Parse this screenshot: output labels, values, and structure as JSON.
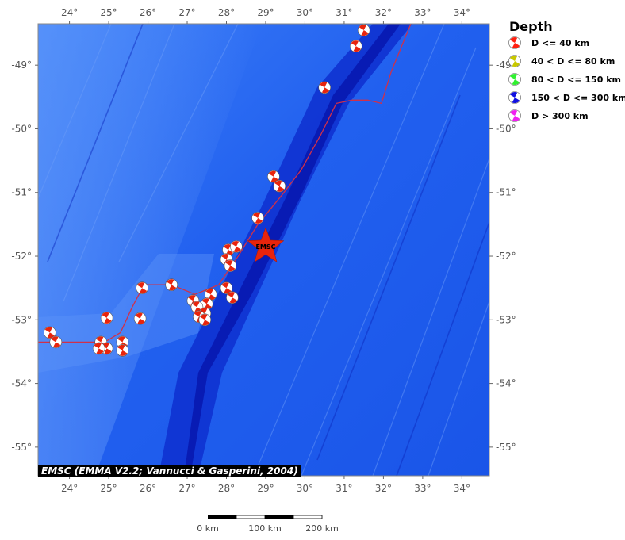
{
  "map": {
    "lon_range": [
      23.2,
      34.7
    ],
    "lat_range": [
      -55.45,
      -48.35
    ],
    "lon_ticks": [
      {
        "v": 24,
        "label": "24°"
      },
      {
        "v": 25,
        "label": "25°"
      },
      {
        "v": 26,
        "label": "26°"
      },
      {
        "v": 27,
        "label": "27°"
      },
      {
        "v": 28,
        "label": "28°"
      },
      {
        "v": 29,
        "label": "29°"
      },
      {
        "v": 30,
        "label": "30°"
      },
      {
        "v": 31,
        "label": "31°"
      },
      {
        "v": 32,
        "label": "32°"
      },
      {
        "v": 33,
        "label": "33°"
      },
      {
        "v": 34,
        "label": "34°"
      }
    ],
    "lat_ticks": [
      {
        "v": -49,
        "label": "-49°"
      },
      {
        "v": -50,
        "label": "-50°"
      },
      {
        "v": -51,
        "label": "-51°"
      },
      {
        "v": -52,
        "label": "-52°"
      },
      {
        "v": -53,
        "label": "-53°"
      },
      {
        "v": -54,
        "label": "-54°"
      },
      {
        "v": -55,
        "label": "-55°"
      }
    ],
    "colors": {
      "ocean_deep": "#0a2fd8",
      "ocean_mid": "#1e5cf0",
      "ocean_light": "#4f8dfa",
      "trench": "#0818b0",
      "plate_boundary": "#d0304a",
      "mechanism_red": "#e8240c"
    },
    "plate_boundary": [
      [
        23.2,
        -53.35
      ],
      [
        24.0,
        -53.35
      ],
      [
        24.9,
        -53.35
      ],
      [
        25.3,
        -53.2
      ],
      [
        25.6,
        -52.8
      ],
      [
        25.9,
        -52.45
      ],
      [
        26.6,
        -52.45
      ],
      [
        27.2,
        -52.6
      ],
      [
        27.8,
        -52.45
      ],
      [
        28.3,
        -52.0
      ],
      [
        28.8,
        -51.5
      ],
      [
        29.4,
        -51.05
      ],
      [
        29.9,
        -50.65
      ],
      [
        30.4,
        -50.1
      ],
      [
        30.8,
        -49.6
      ],
      [
        31.2,
        -49.55
      ],
      [
        31.6,
        -49.55
      ],
      [
        31.95,
        -49.6
      ],
      [
        32.2,
        -49.1
      ],
      [
        32.7,
        -48.35
      ]
    ],
    "events": [
      {
        "lon": 31.5,
        "lat": -48.45
      },
      {
        "lon": 31.3,
        "lat": -48.7
      },
      {
        "lon": 30.5,
        "lat": -49.35
      },
      {
        "lon": 29.2,
        "lat": -50.75
      },
      {
        "lon": 29.35,
        "lat": -50.9
      },
      {
        "lon": 28.8,
        "lat": -51.4
      },
      {
        "lon": 28.05,
        "lat": -51.9
      },
      {
        "lon": 28.25,
        "lat": -51.85
      },
      {
        "lon": 28.0,
        "lat": -52.05
      },
      {
        "lon": 28.1,
        "lat": -52.15
      },
      {
        "lon": 25.85,
        "lat": -52.5
      },
      {
        "lon": 26.6,
        "lat": -52.45
      },
      {
        "lon": 27.6,
        "lat": -52.6
      },
      {
        "lon": 28.0,
        "lat": -52.5
      },
      {
        "lon": 28.15,
        "lat": -52.65
      },
      {
        "lon": 27.15,
        "lat": -52.7
      },
      {
        "lon": 27.5,
        "lat": -52.75
      },
      {
        "lon": 27.25,
        "lat": -52.8
      },
      {
        "lon": 27.45,
        "lat": -52.9
      },
      {
        "lon": 27.3,
        "lat": -52.95
      },
      {
        "lon": 27.45,
        "lat": -53.0
      },
      {
        "lon": 24.95,
        "lat": -52.97
      },
      {
        "lon": 25.8,
        "lat": -52.98
      },
      {
        "lon": 23.5,
        "lat": -53.2
      },
      {
        "lon": 23.65,
        "lat": -53.35
      },
      {
        "lon": 24.8,
        "lat": -53.35
      },
      {
        "lon": 24.95,
        "lat": -53.45
      },
      {
        "lon": 24.75,
        "lat": -53.45
      },
      {
        "lon": 25.35,
        "lat": -53.35
      },
      {
        "lon": 25.35,
        "lat": -53.48
      }
    ],
    "epicenter": {
      "lon": 29.0,
      "lat": -51.85,
      "label": "EMSC",
      "color": "#e8240c"
    }
  },
  "legend": {
    "title": "Depth",
    "items": [
      {
        "label": "D <= 40 km",
        "color": "#ff2010"
      },
      {
        "label": "40 < D <= 80 km",
        "color": "#c8c800"
      },
      {
        "label": "80 < D <= 150 km",
        "color": "#30f030"
      },
      {
        "label": "150 < D <= 300 km",
        "color": "#1010e0"
      },
      {
        "label": "D > 300 km",
        "color": "#f020f0"
      }
    ]
  },
  "credit": "EMSC (EMMA V2.2; Vannucci & Gasperini, 2004)",
  "scale_bar": {
    "labels": [
      "0 km",
      "100 km",
      "200 km"
    ]
  }
}
